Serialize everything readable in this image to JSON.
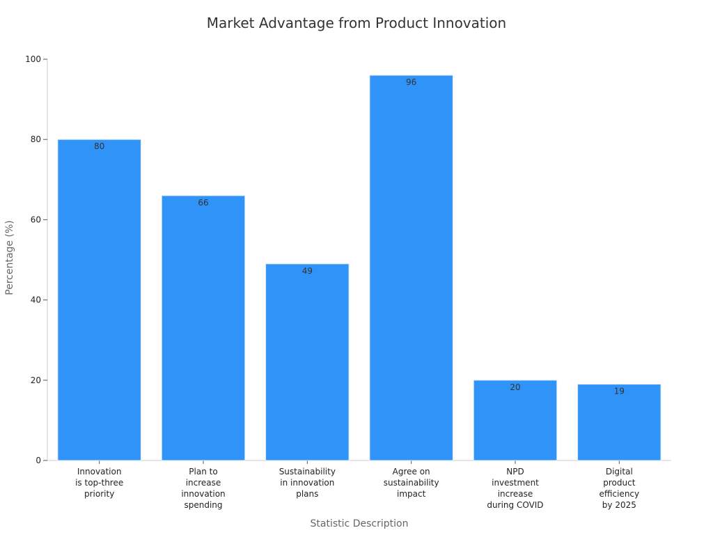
{
  "chart_data": {
    "type": "bar",
    "title": "Market Advantage from Product Innovation",
    "xlabel": "Statistic Description",
    "ylabel": "Percentage (%)",
    "ylim": [
      0,
      100
    ],
    "yticks": [
      0,
      20,
      40,
      60,
      80,
      100
    ],
    "categories": [
      [
        "Innovation",
        "is top-three",
        "priority"
      ],
      [
        "Plan to",
        "increase",
        "innovation",
        "spending"
      ],
      [
        "Sustainability",
        "in innovation",
        "plans"
      ],
      [
        "Agree on",
        "sustainability",
        "impact"
      ],
      [
        "NPD",
        "investment",
        "increase",
        "during COVID"
      ],
      [
        "Digital",
        "product",
        "efficiency",
        "by 2025"
      ]
    ],
    "values": [
      80,
      66,
      49,
      96,
      20,
      19
    ],
    "value_labels": [
      "80",
      "66",
      "49",
      "96",
      "20",
      "19"
    ],
    "bar_color": "#2f93f7",
    "bar_edge_color": "#dbe9f7",
    "grid": false,
    "legend": "none"
  }
}
